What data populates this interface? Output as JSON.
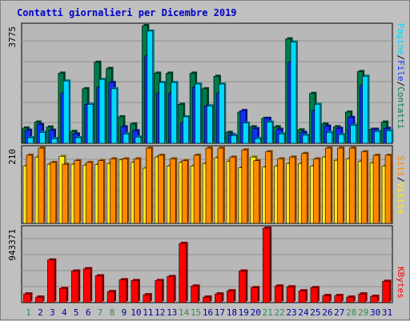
{
  "title": "Contatti giornalieri per Dicembre 2019",
  "colors": {
    "background": "#c0c0c0",
    "panel": "#b8b8b8",
    "grid": "#909090",
    "title": "#0000c8",
    "pagine": "#007a4a",
    "file": "#1030ff",
    "contatti": "#00d8ff",
    "siti": "#ff8800",
    "visite": "#ffe81a",
    "kbytes": "#ff0000",
    "weekend_day": "#2e8b57",
    "weekday": "#0000a0"
  },
  "right_labels": {
    "panel1": [
      "Pagine",
      "/",
      "File",
      "/",
      "Contatti"
    ],
    "panel2": [
      "Siti",
      "/",
      "Visite"
    ],
    "panel3": [
      "KBytes"
    ]
  },
  "chart_data": [
    {
      "type": "bar",
      "name_panel": "Pagine / File / Contatti",
      "ytick": "3775",
      "ymax": 3775,
      "x": [
        1,
        2,
        3,
        4,
        5,
        6,
        7,
        8,
        9,
        10,
        11,
        12,
        13,
        14,
        15,
        16,
        17,
        18,
        19,
        20,
        21,
        22,
        23,
        24,
        25,
        26,
        27,
        28,
        29,
        30,
        31
      ],
      "series": [
        {
          "name": "Pagine",
          "values": [
            490,
            680,
            520,
            2250,
            380,
            1750,
            2600,
            2400,
            850,
            620,
            3800,
            2250,
            2250,
            1250,
            2250,
            1750,
            2150,
            350,
            1000,
            530,
            800,
            530,
            3350,
            430,
            1600,
            620,
            530,
            1000,
            2300,
            450,
            680
          ]
        },
        {
          "name": "File",
          "values": [
            420,
            600,
            420,
            1600,
            300,
            1250,
            1800,
            1950,
            530,
            400,
            2800,
            1600,
            1600,
            650,
            1800,
            1200,
            1600,
            280,
            1050,
            470,
            800,
            450,
            2600,
            350,
            1050,
            550,
            480,
            830,
            1850,
            450,
            480
          ]
        },
        {
          "name": "Contatti",
          "values": [
            180,
            350,
            150,
            2000,
            180,
            1250,
            2050,
            1750,
            300,
            200,
            3600,
            1950,
            1950,
            850,
            1900,
            1200,
            1900,
            250,
            650,
            150,
            680,
            300,
            3250,
            260,
            1250,
            350,
            280,
            580,
            2150,
            380,
            400
          ]
        }
      ]
    },
    {
      "type": "bar",
      "name_panel": "Siti / Visite",
      "ytick": "210",
      "ymax": 210,
      "x": [
        1,
        2,
        3,
        4,
        5,
        6,
        7,
        8,
        9,
        10,
        11,
        12,
        13,
        14,
        15,
        16,
        17,
        18,
        19,
        20,
        21,
        22,
        23,
        24,
        25,
        26,
        27,
        28,
        29,
        30,
        31
      ],
      "series": [
        {
          "name": "Siti",
          "values": [
            160,
            185,
            165,
            187,
            165,
            162,
            164,
            167,
            177,
            170,
            154,
            185,
            160,
            170,
            160,
            167,
            183,
            173,
            155,
            185,
            157,
            160,
            167,
            167,
            160,
            185,
            176,
            180,
            173,
            169,
            160
          ]
        },
        {
          "name": "Visite",
          "values": [
            190,
            210,
            170,
            165,
            175,
            170,
            175,
            180,
            180,
            180,
            210,
            190,
            180,
            175,
            190,
            220,
            210,
            185,
            205,
            175,
            200,
            180,
            185,
            195,
            180,
            220,
            230,
            220,
            200,
            190,
            190
          ]
        }
      ]
    },
    {
      "type": "bar",
      "name_panel": "KBytes",
      "ytick": "943371",
      "ymax": 943371,
      "x": [
        1,
        2,
        3,
        4,
        5,
        6,
        7,
        8,
        9,
        10,
        11,
        12,
        13,
        14,
        15,
        16,
        17,
        18,
        19,
        20,
        21,
        22,
        23,
        24,
        25,
        26,
        27,
        28,
        29,
        30,
        31
      ],
      "series": [
        {
          "name": "KBytes",
          "values": [
            110000,
            70000,
            540000,
            180000,
            400000,
            430000,
            340000,
            140000,
            290000,
            280000,
            100000,
            280000,
            330000,
            750000,
            210000,
            70000,
            110000,
            150000,
            400000,
            190000,
            1050000,
            210000,
            200000,
            150000,
            190000,
            90000,
            90000,
            70000,
            110000,
            80000,
            270000
          ]
        }
      ]
    }
  ],
  "x_axis": {
    "labels": [
      "1",
      "2",
      "3",
      "4",
      "5",
      "6",
      "7",
      "8",
      "9",
      "10",
      "11",
      "12",
      "13",
      "14",
      "15",
      "16",
      "17",
      "18",
      "19",
      "20",
      "21",
      "22",
      "23",
      "24",
      "25",
      "26",
      "27",
      "28",
      "29",
      "30",
      "31"
    ],
    "weekend_days": [
      1,
      7,
      8,
      14,
      15,
      21,
      22,
      28,
      29
    ]
  }
}
